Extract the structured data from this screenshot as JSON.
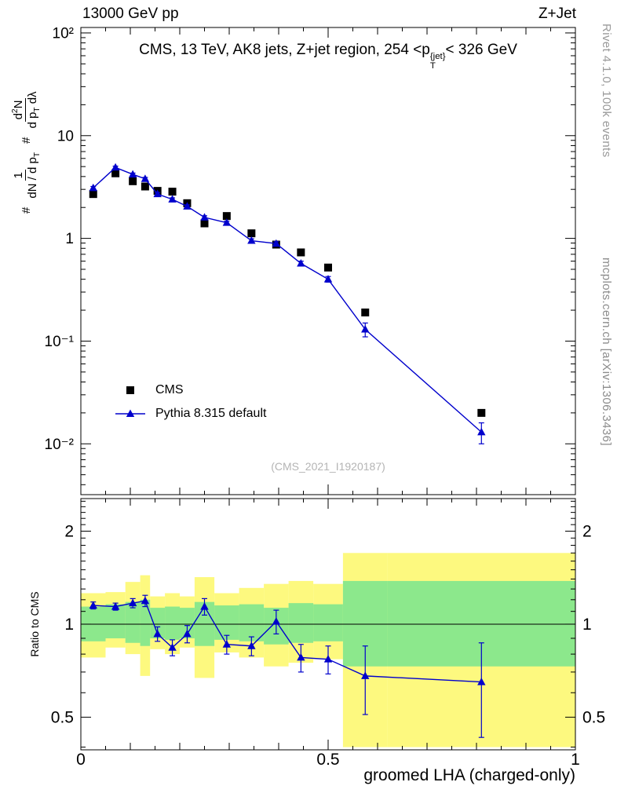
{
  "header": {
    "left": "13000 GeV pp",
    "right": "Z+Jet"
  },
  "sidenotes": {
    "top": "Rivet 4.1.0, 100k events",
    "bottom": "mcplots.cern.ch [arXiv:1306.3436]"
  },
  "watermark": "(CMS_2021_I1920187)",
  "chart_data": {
    "type": "line",
    "title_parts": {
      "pre": "CMS, 13 TeV, AK8 jets, Z+jet region, 254 <p",
      "sup": "{jet}",
      "sub": "T",
      "post": "< 326 GeV"
    },
    "xlabel": "groomed LHA (charged-only)",
    "ylabel_ratio": "Ratio to CMS",
    "ylabel": {
      "hash": "#",
      "f1_num": "1",
      "f1_den_pre": "dN / d p",
      "f1_den_sub": "T",
      "f2_num_pre": "d",
      "f2_num_sup": "2",
      "f2_num_post": "N",
      "f2_den_pre": "d p",
      "f2_den_sub": "T",
      "f2_den_post": " dλ"
    },
    "xlim": [
      0,
      1
    ],
    "xticks": [
      {
        "v": 0,
        "label": "0"
      },
      {
        "v": 0.5,
        "label": "0.5"
      },
      {
        "v": 1,
        "label": "1"
      }
    ],
    "main": {
      "yscale": "log",
      "ylim": [
        0.0032,
        113
      ],
      "yticks": [
        {
          "v": 100,
          "label": "10²"
        },
        {
          "v": 10,
          "label": "10"
        },
        {
          "v": 1,
          "label": "1"
        },
        {
          "v": 0.1,
          "label": "10⁻¹"
        },
        {
          "v": 0.01,
          "label": "10⁻²"
        }
      ]
    },
    "ratio": {
      "yscale": "log",
      "ylim": [
        0.392,
        2.55
      ],
      "yticks": [
        {
          "v": 2,
          "label": "2"
        },
        {
          "v": 1,
          "label": "1"
        },
        {
          "v": 0.5,
          "label": "0.5"
        }
      ]
    },
    "bin_edges": [
      0,
      0.05,
      0.09,
      0.12,
      0.14,
      0.17,
      0.2,
      0.23,
      0.27,
      0.32,
      0.37,
      0.42,
      0.47,
      0.53,
      0.62,
      1.0
    ],
    "x": [
      0.025,
      0.07,
      0.105,
      0.13,
      0.155,
      0.185,
      0.215,
      0.25,
      0.295,
      0.345,
      0.395,
      0.445,
      0.5,
      0.575,
      0.81
    ],
    "series": [
      {
        "name": "CMS",
        "marker": "square",
        "color": "#000000",
        "y": [
          2.7,
          4.3,
          3.6,
          3.2,
          2.9,
          2.85,
          2.2,
          1.4,
          1.65,
          1.12,
          0.87,
          0.73,
          0.52,
          0.19,
          0.02
        ]
      },
      {
        "name": "Pythia 8.315 default",
        "marker": "triangle",
        "color": "#0000cc",
        "y": [
          3.1,
          4.9,
          4.2,
          3.8,
          2.7,
          2.4,
          2.05,
          1.6,
          1.42,
          0.95,
          0.89,
          0.57,
          0.4,
          0.13,
          0.013
        ],
        "yerr": [
          0.1,
          0.15,
          0.12,
          0.12,
          0.1,
          0.08,
          0.07,
          0.06,
          0.05,
          0.04,
          0.04,
          0.03,
          0.025,
          0.02,
          0.003
        ]
      }
    ],
    "ratio_series": {
      "name": "Pythia / CMS",
      "color": "#0000cc",
      "y": [
        1.15,
        1.14,
        1.17,
        1.19,
        0.93,
        0.84,
        0.93,
        1.14,
        0.86,
        0.85,
        1.02,
        0.78,
        0.77,
        0.68,
        0.65
      ],
      "yerr": [
        0.03,
        0.03,
        0.04,
        0.05,
        0.05,
        0.05,
        0.06,
        0.07,
        0.06,
        0.06,
        0.09,
        0.08,
        0.08,
        0.17,
        0.22
      ]
    },
    "bands": {
      "yellow": {
        "color": "#fdf97f",
        "lo": [
          0.78,
          0.84,
          0.8,
          0.68,
          0.83,
          0.8,
          0.84,
          0.67,
          0.81,
          0.78,
          0.73,
          0.75,
          0.77,
          0.4,
          0.4
        ],
        "hi": [
          1.26,
          1.27,
          1.37,
          1.44,
          1.23,
          1.26,
          1.23,
          1.42,
          1.26,
          1.31,
          1.35,
          1.38,
          1.35,
          1.7,
          1.7
        ]
      },
      "green": {
        "color": "#8ce88c",
        "lo": [
          0.88,
          0.9,
          0.87,
          0.85,
          0.9,
          0.89,
          0.9,
          0.85,
          0.89,
          0.88,
          0.86,
          0.87,
          0.88,
          0.73,
          0.73
        ],
        "hi": [
          1.14,
          1.16,
          1.18,
          1.2,
          1.13,
          1.14,
          1.13,
          1.18,
          1.15,
          1.16,
          1.13,
          1.17,
          1.16,
          1.38,
          1.38
        ]
      }
    }
  }
}
